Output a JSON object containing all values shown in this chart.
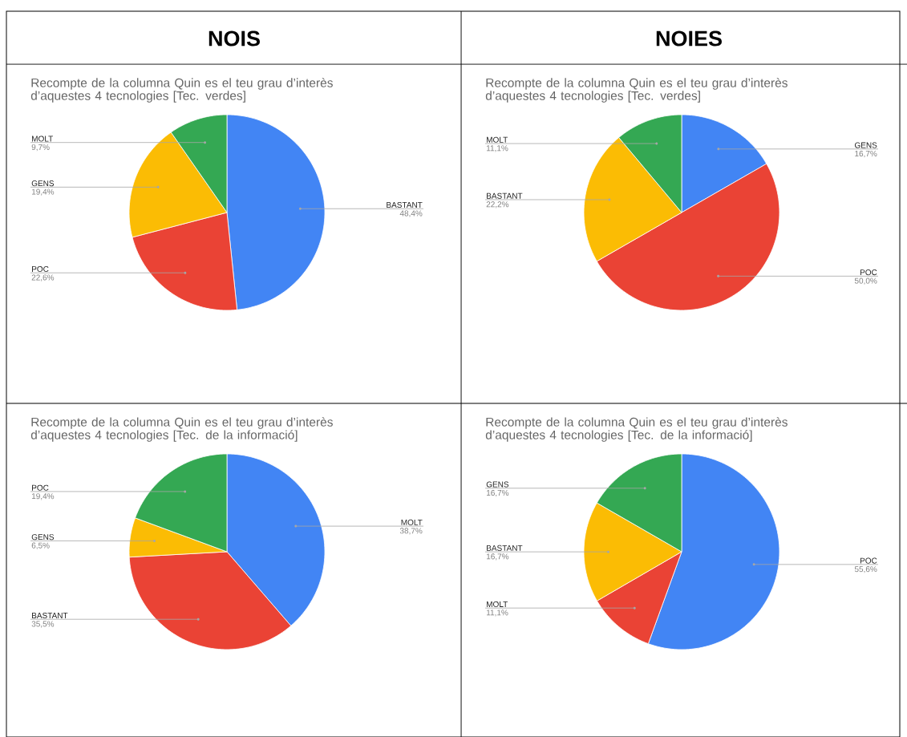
{
  "chart_data": [
    {
      "type": "pie",
      "annotations": [
        "NOIS"
      ],
      "title": "Recompte de la columna Quin es el teu grau d’interès d’aquestes 4 tecnologies [Tec. verdes]",
      "categories": [
        "BASTANT",
        "POC",
        "GENS",
        "MOLT"
      ],
      "values": [
        48.4,
        22.6,
        19.4,
        9.7
      ],
      "value_labels": [
        "48,4%",
        "22,6%",
        "19,4%",
        "9,7%"
      ],
      "colors": [
        "#4285f4",
        "#ea4335",
        "#fbbc04",
        "#34a853"
      ]
    },
    {
      "type": "pie",
      "annotations": [
        "NOIES"
      ],
      "title": "Recompte de la columna Quin es el teu grau d’interès d’aquestes 4 tecnologies [Tec. verdes]",
      "categories": [
        "GENS",
        "POC",
        "BASTANT",
        "MOLT"
      ],
      "values": [
        16.7,
        50.0,
        22.2,
        11.1
      ],
      "value_labels": [
        "16,7%",
        "50,0%",
        "22,2%",
        "11,1%"
      ],
      "colors": [
        "#4285f4",
        "#ea4335",
        "#fbbc04",
        "#34a853"
      ]
    },
    {
      "type": "pie",
      "title": "Recompte de la columna Quin es el teu grau d’interès d’aquestes 4 tecnologies [Tec. de la informació]",
      "categories": [
        "MOLT",
        "BASTANT",
        "GENS",
        "POC"
      ],
      "values": [
        38.7,
        35.5,
        6.5,
        19.4
      ],
      "value_labels": [
        "38,7%",
        "35,5%",
        "6,5%",
        "19,4%"
      ],
      "colors": [
        "#4285f4",
        "#ea4335",
        "#fbbc04",
        "#34a853"
      ]
    },
    {
      "type": "pie",
      "title": "Recompte de la columna Quin es el teu grau d’interès d’aquestes 4 tecnologies [Tec. de la informació]",
      "categories": [
        "POC",
        "MOLT",
        "BASTANT",
        "GENS"
      ],
      "values": [
        55.6,
        11.1,
        16.7,
        16.7
      ],
      "value_labels": [
        "55,6%",
        "11,1%",
        "16,7%",
        "16,7%"
      ],
      "colors": [
        "#4285f4",
        "#ea4335",
        "#fbbc04",
        "#34a853"
      ]
    }
  ]
}
